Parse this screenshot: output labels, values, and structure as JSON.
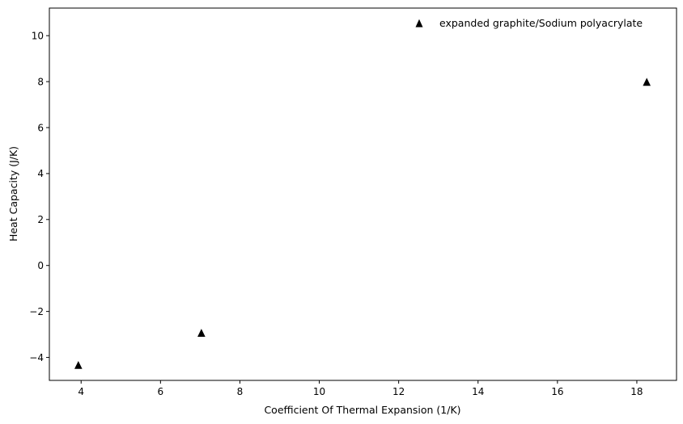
{
  "chart_data": {
    "type": "scatter",
    "title": "",
    "xlabel": "Coefficient Of Thermal Expansion (1/K)",
    "ylabel": "Heat Capacity (J/K)",
    "xlim": [
      3.2,
      19.0
    ],
    "ylim": [
      -5.0,
      11.2
    ],
    "xticks": [
      4,
      6,
      8,
      10,
      12,
      14,
      16,
      18
    ],
    "yticks": [
      -4,
      -2,
      0,
      2,
      4,
      6,
      8,
      10
    ],
    "xtick_labels": [
      "4",
      "6",
      "8",
      "10",
      "12",
      "14",
      "16",
      "18"
    ],
    "ytick_labels": [
      "−4",
      "−2",
      "0",
      "2",
      "4",
      "6",
      "8",
      "10"
    ],
    "legend_position": "top-right",
    "grid": false,
    "series": [
      {
        "name": "expanded graphite/Sodium polyacrylate",
        "marker": "triangle-up",
        "color": "#000000",
        "points": [
          {
            "x": 3.93,
            "y": -4.35
          },
          {
            "x": 7.03,
            "y": -2.95
          },
          {
            "x": 18.25,
            "y": 7.97
          }
        ]
      }
    ]
  }
}
